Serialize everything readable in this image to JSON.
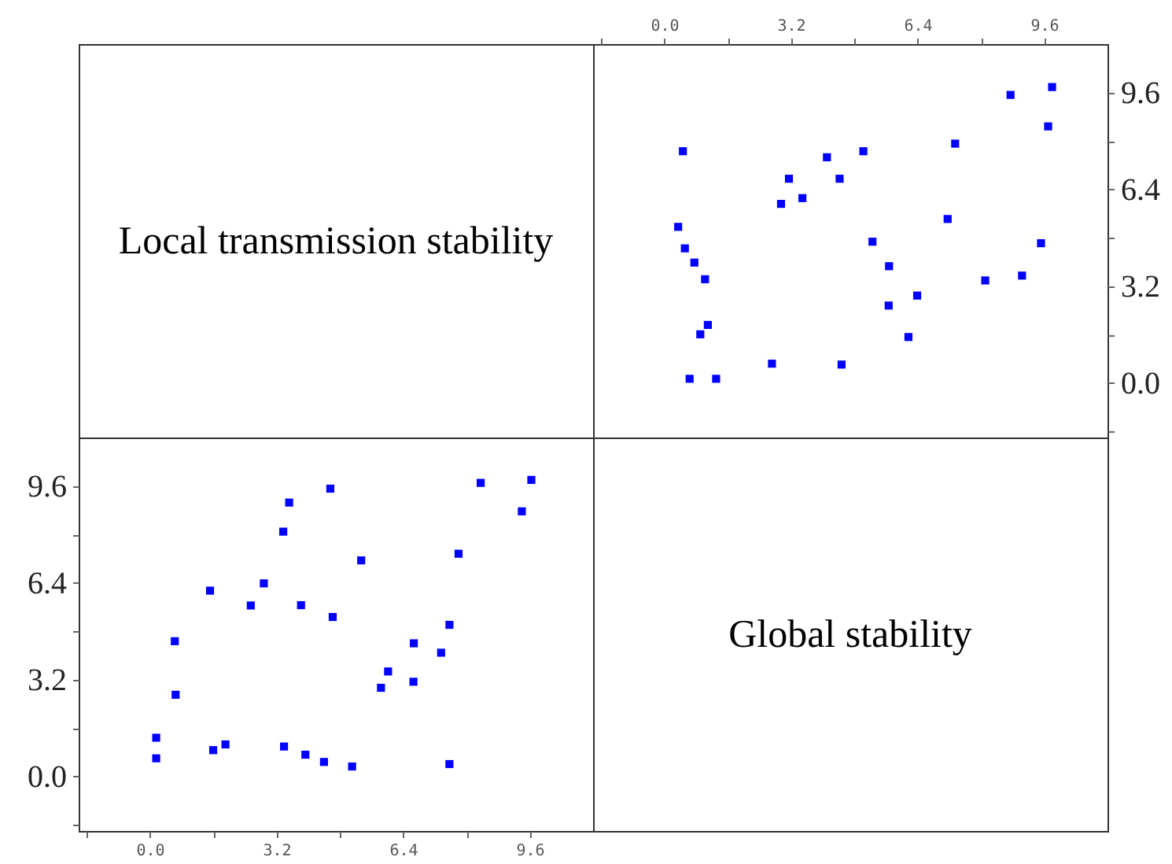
{
  "chart_data": [
    {
      "type": "other",
      "title": "Local transmission stability"
    },
    {
      "type": "scatter",
      "xlim": [
        -1.8,
        11.2
      ],
      "ylim": [
        -1.8,
        11.2
      ],
      "marker": "square",
      "xticks": [
        {
          "value": -1.6,
          "label": null
        },
        {
          "value": 0,
          "label": "0.0"
        },
        {
          "value": 1.6,
          "label": null
        },
        {
          "value": 3.2,
          "label": "3.2"
        },
        {
          "value": 4.8,
          "label": null
        },
        {
          "value": 6.4,
          "label": "6.4"
        },
        {
          "value": 8,
          "label": null
        },
        {
          "value": 9.6,
          "label": "9.6"
        }
      ],
      "yticks": [
        {
          "value": -1.6,
          "label": null
        },
        {
          "value": 0,
          "label": "0.0"
        },
        {
          "value": 1.6,
          "label": null
        },
        {
          "value": 3.2,
          "label": "3.2"
        },
        {
          "value": 4.8,
          "label": null
        },
        {
          "value": 6.4,
          "label": "6.4"
        },
        {
          "value": 8,
          "label": null
        },
        {
          "value": 9.6,
          "label": "9.6"
        }
      ],
      "series": [
        {
          "color": "#0000ff",
          "x": [
            0.47,
            9.8,
            8.75,
            9.7,
            7.35,
            4.11,
            5.03,
            3.15,
            4.43,
            2.95,
            3.49,
            7.16,
            0.35,
            0.52,
            5.26,
            9.52,
            0.76,
            1.03,
            5.68,
            8.11,
            9.04,
            6.39,
            5.67,
            1.1,
            0.91,
            6.17,
            2.72,
            4.48,
            0.64,
            1.31
          ],
          "values": [
            7.66,
            9.78,
            9.52,
            8.48,
            7.91,
            7.46,
            7.66,
            6.75,
            6.75,
            5.92,
            6.11,
            5.42,
            5.16,
            4.45,
            4.67,
            4.62,
            3.98,
            3.43,
            3.86,
            3.39,
            3.55,
            2.89,
            2.56,
            1.92,
            1.61,
            1.52,
            0.64,
            0.61,
            0.14,
            0.14
          ]
        }
      ]
    },
    {
      "type": "scatter",
      "xlim": [
        -1.8,
        11.2
      ],
      "ylim": [
        -1.8,
        11.2
      ],
      "marker": "square",
      "xticks": [
        {
          "value": -1.6,
          "label": null
        },
        {
          "value": 0,
          "label": "0.0"
        },
        {
          "value": 1.6,
          "label": null
        },
        {
          "value": 3.2,
          "label": "3.2"
        },
        {
          "value": 4.8,
          "label": null
        },
        {
          "value": 6.4,
          "label": "6.4"
        },
        {
          "value": 8,
          "label": null
        },
        {
          "value": 9.6,
          "label": "9.6"
        }
      ],
      "yticks": [
        {
          "value": -1.6,
          "label": null
        },
        {
          "value": 0,
          "label": "0.0"
        },
        {
          "value": 1.6,
          "label": null
        },
        {
          "value": 3.2,
          "label": "3.2"
        },
        {
          "value": 4.8,
          "label": null
        },
        {
          "value": 6.4,
          "label": "6.4"
        },
        {
          "value": 8,
          "label": null
        },
        {
          "value": 9.6,
          "label": "9.6"
        }
      ],
      "series": [
        {
          "color": "#0000ff",
          "x": [
            9.64,
            8.36,
            4.56,
            3.52,
            9.4,
            3.37,
            7.8,
            5.34,
            2.88,
            1.52,
            2.55,
            3.82,
            4.62,
            7.57,
            0.63,
            6.67,
            7.36,
            6.02,
            6.66,
            5.84,
            0.65,
            0.16,
            0.16,
            1.91,
            1.6,
            3.39,
            3.93,
            4.4,
            5.11,
            7.57
          ],
          "values": [
            9.8,
            9.7,
            9.51,
            9.05,
            8.76,
            8.09,
            7.36,
            7.14,
            6.38,
            6.14,
            5.65,
            5.66,
            5.27,
            5.01,
            4.47,
            4.4,
            4.09,
            3.47,
            3.13,
            2.93,
            2.7,
            1.28,
            0.6,
            1.06,
            0.87,
            0.99,
            0.72,
            0.48,
            0.33,
            0.41
          ]
        }
      ]
    },
    {
      "type": "other",
      "title": "Global stability"
    }
  ]
}
